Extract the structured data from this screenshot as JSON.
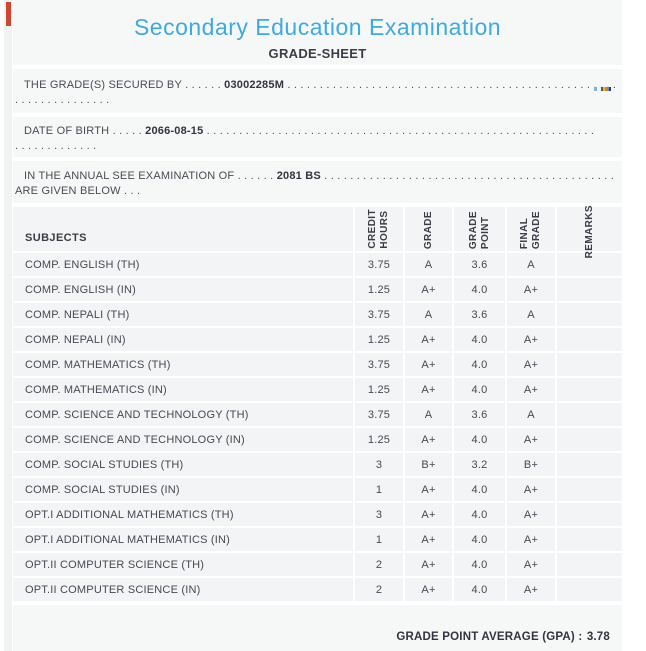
{
  "title": "Secondary Education Examination",
  "subtitle": "GRADE-SHEET",
  "sections": [
    {
      "label": "THE GRADE(S) SECURED BY",
      "leader": " . . . . . . ",
      "value": "03002285M",
      "tail": " . . . . . . . . . . . . . . . . . . . . . . . . . . . . . . . . . . . . . . . . . . . . . . . . . . . . . . . . . . . .",
      "line2": ". . . . . . . . . . . . . . ."
    },
    {
      "label": "DATE OF BIRTH",
      "leader": " . . . . . ",
      "value": "2066-08-15",
      "tail": " . . . . . . . . . . . . . . . . . . . . . . . . . . . . . . . . . . . . . . . . . . . . . . . . . . . . . . . . . . . .",
      "line2": ". . . . . . . . . . . . ."
    },
    {
      "label": "IN THE ANNUAL SEE EXAMINATION OF",
      "leader": " . . . . . . ",
      "value": "2081 BS",
      "tail": " . . . . . . . . . . . . . . . . . . . . . . . . . . . . . . . . . . . . . . . . . . . . . . . . . . . . . . . . . . . .",
      "line2": "ARE GIVEN BELOW . . ."
    }
  ],
  "table": {
    "headers": {
      "subjects": "SUBJECTS",
      "credit_hours": "CREDIT\nHOURS",
      "grade": "GRADE",
      "grade_point": "GRADE\nPOINT",
      "final_grade": "FINAL\nGRADE",
      "remarks": "REMARKS"
    },
    "rows": [
      {
        "subject": "COMP. ENGLISH (TH)",
        "credit_hours": "3.75",
        "grade": "A",
        "grade_point": "3.6",
        "final_grade": "A",
        "remarks": ""
      },
      {
        "subject": "COMP. ENGLISH (IN)",
        "credit_hours": "1.25",
        "grade": "A+",
        "grade_point": "4.0",
        "final_grade": "A+",
        "remarks": ""
      },
      {
        "subject": "COMP. NEPALI (TH)",
        "credit_hours": "3.75",
        "grade": "A",
        "grade_point": "3.6",
        "final_grade": "A",
        "remarks": ""
      },
      {
        "subject": "COMP. NEPALI (IN)",
        "credit_hours": "1.25",
        "grade": "A+",
        "grade_point": "4.0",
        "final_grade": "A+",
        "remarks": ""
      },
      {
        "subject": "COMP. MATHEMATICS (TH)",
        "credit_hours": "3.75",
        "grade": "A+",
        "grade_point": "4.0",
        "final_grade": "A+",
        "remarks": ""
      },
      {
        "subject": "COMP. MATHEMATICS (IN)",
        "credit_hours": "1.25",
        "grade": "A+",
        "grade_point": "4.0",
        "final_grade": "A+",
        "remarks": ""
      },
      {
        "subject": "COMP. SCIENCE AND TECHNOLOGY (TH)",
        "credit_hours": "3.75",
        "grade": "A",
        "grade_point": "3.6",
        "final_grade": "A",
        "remarks": ""
      },
      {
        "subject": "COMP. SCIENCE AND TECHNOLOGY (IN)",
        "credit_hours": "1.25",
        "grade": "A+",
        "grade_point": "4.0",
        "final_grade": "A+",
        "remarks": ""
      },
      {
        "subject": "COMP. SOCIAL STUDIES (TH)",
        "credit_hours": "3",
        "grade": "B+",
        "grade_point": "3.2",
        "final_grade": "B+",
        "remarks": ""
      },
      {
        "subject": "COMP. SOCIAL STUDIES (IN)",
        "credit_hours": "1",
        "grade": "A+",
        "grade_point": "4.0",
        "final_grade": "A+",
        "remarks": ""
      },
      {
        "subject": "OPT.I ADDITIONAL MATHEMATICS (TH)",
        "credit_hours": "3",
        "grade": "A+",
        "grade_point": "4.0",
        "final_grade": "A+",
        "remarks": ""
      },
      {
        "subject": "OPT.I ADDITIONAL MATHEMATICS (IN)",
        "credit_hours": "1",
        "grade": "A+",
        "grade_point": "4.0",
        "final_grade": "A+",
        "remarks": ""
      },
      {
        "subject": "OPT.II COMPUTER SCIENCE (TH)",
        "credit_hours": "2",
        "grade": "A+",
        "grade_point": "4.0",
        "final_grade": "A+",
        "remarks": ""
      },
      {
        "subject": "OPT.II COMPUTER SCIENCE (IN)",
        "credit_hours": "2",
        "grade": "A+",
        "grade_point": "4.0",
        "final_grade": "A+",
        "remarks": ""
      }
    ]
  },
  "footer": {
    "gpa_label": "GRADE POINT AVERAGE (GPA) :",
    "gpa_value": "3.78"
  },
  "colors": {
    "title_blue": "#3fa9e0",
    "text_dark": "#474852",
    "page_bg": "#f6f7f7",
    "cell_bg": "#f3f4f5",
    "red_marker": "#cf4631"
  }
}
